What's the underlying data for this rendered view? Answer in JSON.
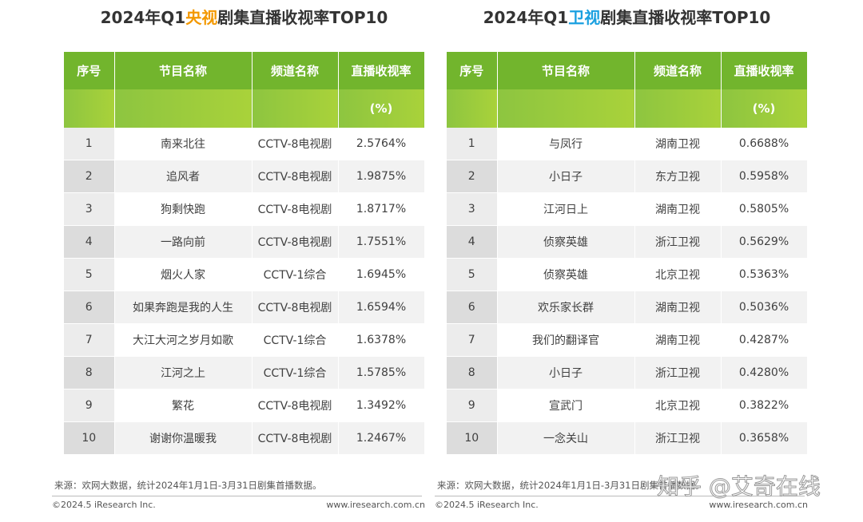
{
  "panels": [
    {
      "title": {
        "prefix": "2024年Q1",
        "highlight": "央视",
        "suffix": "剧集直播收视率TOP10"
      },
      "table": {
        "header": [
          "序号",
          "节目名称",
          "频道名称",
          "直播收视率"
        ],
        "subheader": "(%)",
        "rows": [
          [
            "1",
            "南来北往",
            "CCTV-8电视剧",
            "2.5764%"
          ],
          [
            "2",
            "追风者",
            "CCTV-8电视剧",
            "1.9875%"
          ],
          [
            "3",
            "狗剩快跑",
            "CCTV-8电视剧",
            "1.8717%"
          ],
          [
            "4",
            "一路向前",
            "CCTV-8电视剧",
            "1.7551%"
          ],
          [
            "5",
            "烟火人家",
            "CCTV-1综合",
            "1.6945%"
          ],
          [
            "6",
            "如果奔跑是我的人生",
            "CCTV-8电视剧",
            "1.6594%"
          ],
          [
            "7",
            "大江大河之岁月如歌",
            "CCTV-1综合",
            "1.6378%"
          ],
          [
            "8",
            "江河之上",
            "CCTV-1综合",
            "1.5785%"
          ],
          [
            "9",
            "繁花",
            "CCTV-8电视剧",
            "1.3492%"
          ],
          [
            "10",
            "谢谢你温暖我",
            "CCTV-8电视剧",
            "1.2467%"
          ]
        ]
      },
      "source": "来源：欢网大数据，统计2024年1月1日-3月31日剧集首播数据。",
      "copyright": "©2024.5 iResearch Inc.",
      "website": "www.iresearch.com.cn"
    },
    {
      "title": {
        "prefix": "2024年Q1",
        "highlight": "卫视",
        "suffix": "剧集直播收视率TOP10"
      },
      "table": {
        "header": [
          "序号",
          "节目名称",
          "频道名称",
          "直播收视率"
        ],
        "subheader": "(%)",
        "rows": [
          [
            "1",
            "与凤行",
            "湖南卫视",
            "0.6688%"
          ],
          [
            "2",
            "小日子",
            "东方卫视",
            "0.5958%"
          ],
          [
            "3",
            "江河日上",
            "湖南卫视",
            "0.5805%"
          ],
          [
            "4",
            "侦察英雄",
            "浙江卫视",
            "0.5629%"
          ],
          [
            "5",
            "侦察英雄",
            "北京卫视",
            "0.5363%"
          ],
          [
            "6",
            "欢乐家长群",
            "湖南卫视",
            "0.5036%"
          ],
          [
            "7",
            "我们的翻译官",
            "湖南卫视",
            "0.4287%"
          ],
          [
            "8",
            "小日子",
            "浙江卫视",
            "0.4280%"
          ],
          [
            "9",
            "宣武门",
            "北京卫视",
            "0.3822%"
          ],
          [
            "10",
            "一念关山",
            "浙江卫视",
            "0.3658%"
          ]
        ]
      },
      "source": "来源：欢网大数据，统计2024年1月1日-3月31日剧集首播数据。",
      "copyright": "©2024.5 iResearch Inc.",
      "website": "www.iresearch.com.cn"
    }
  ],
  "watermark": "知乎 @艾奇在线"
}
